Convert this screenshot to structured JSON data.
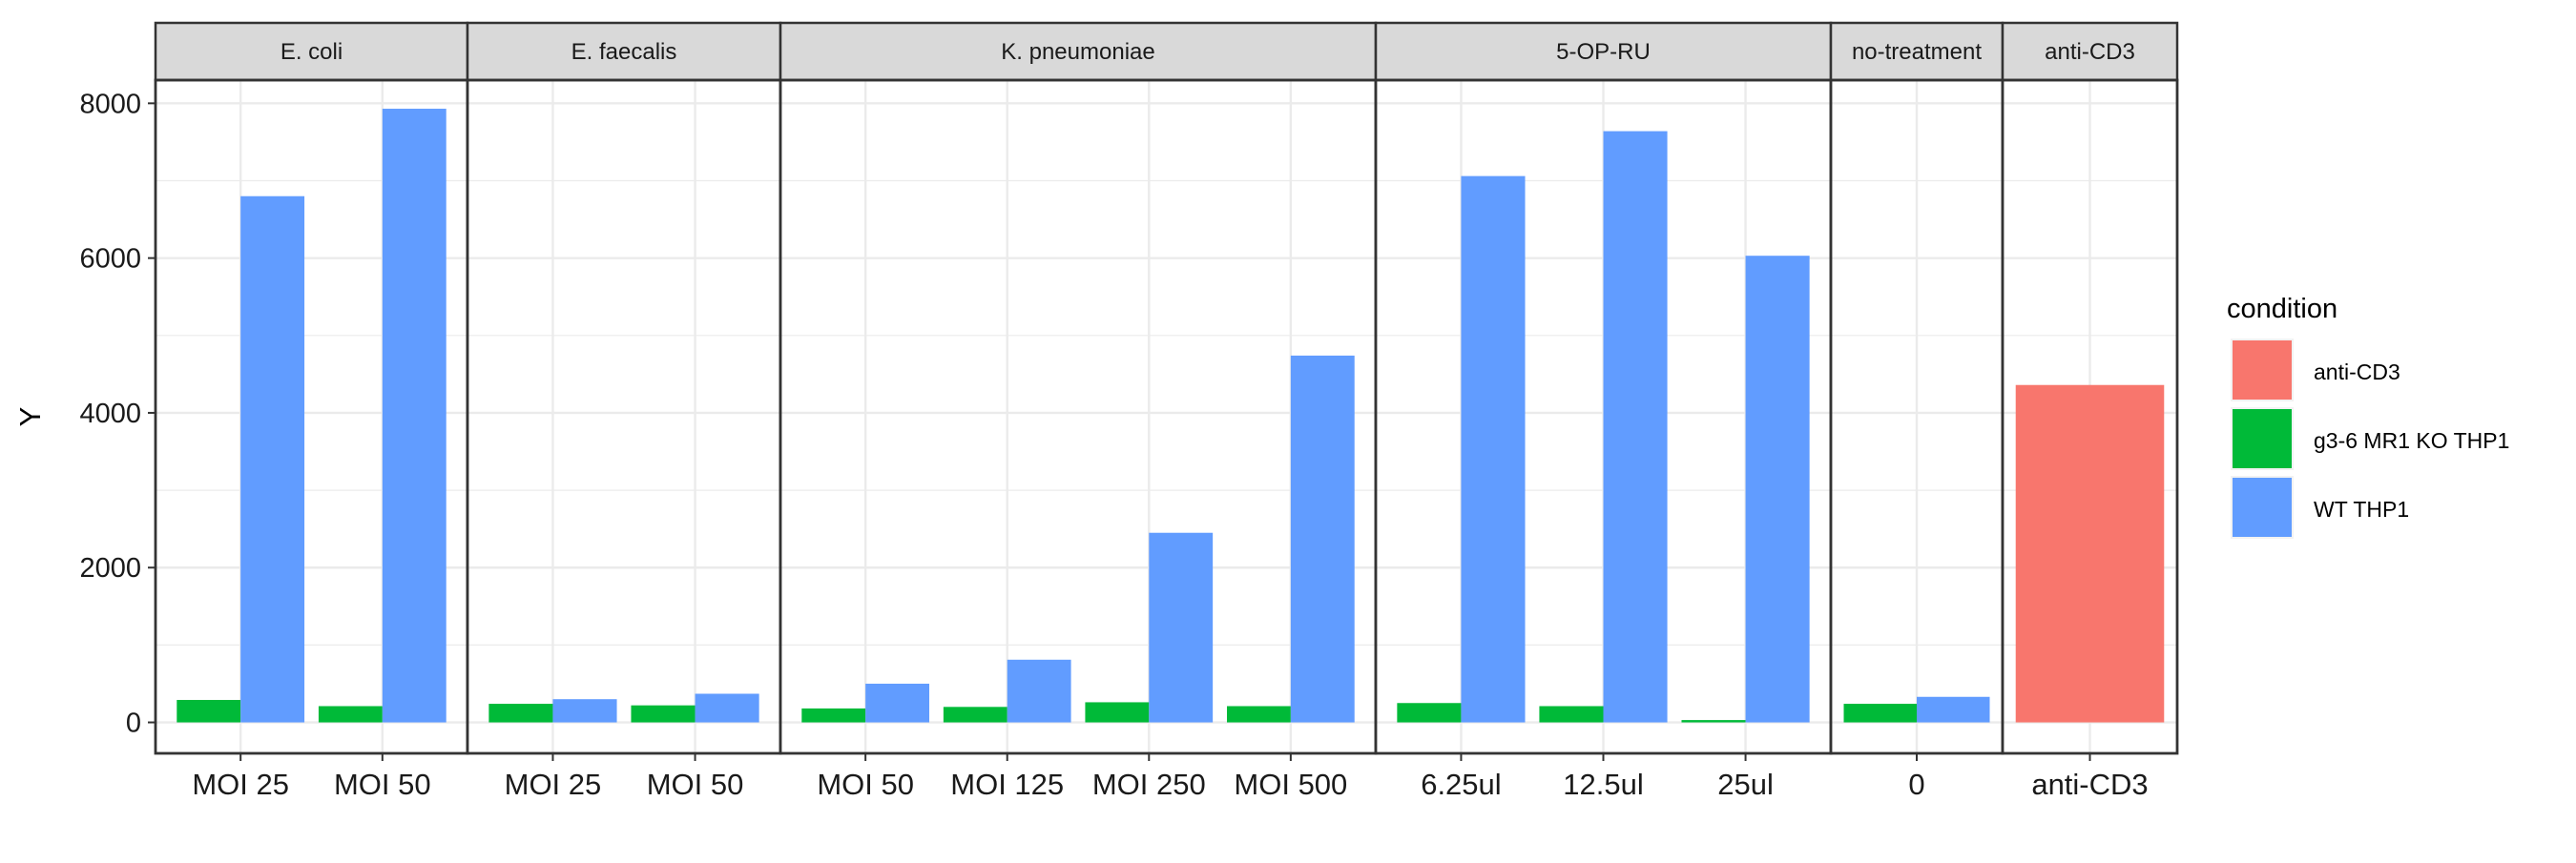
{
  "chart_data": {
    "type": "bar",
    "ylabel": "Y",
    "xlabel": "",
    "ylim": [
      -400,
      8300
    ],
    "yticks": [
      0,
      2000,
      4000,
      6000,
      8000
    ],
    "grid": true,
    "legend": {
      "title": "condition",
      "position": "right",
      "entries": [
        "anti-CD3",
        "g3-6 MR1 KO THP1",
        "WT THP1"
      ]
    },
    "colors": {
      "anti-CD3": "#F8766D",
      "g3-6 MR1 KO THP1": "#00BA38",
      "WT THP1": "#619CFF"
    },
    "facets": [
      {
        "label": "E. coli",
        "categories": [
          "MOI 25",
          "MOI 50"
        ],
        "series": [
          {
            "name": "g3-6 MR1 KO THP1",
            "values": [
              290,
              210
            ]
          },
          {
            "name": "WT THP1",
            "values": [
              6800,
              7930
            ]
          }
        ]
      },
      {
        "label": "E. faecalis",
        "categories": [
          "MOI 25",
          "MOI 50"
        ],
        "series": [
          {
            "name": "g3-6 MR1 KO THP1",
            "values": [
              240,
              220
            ]
          },
          {
            "name": "WT THP1",
            "values": [
              300,
              370
            ]
          }
        ]
      },
      {
        "label": "K. pneumoniae",
        "categories": [
          "MOI 50",
          "MOI 125",
          "MOI 250",
          "MOI 500"
        ],
        "series": [
          {
            "name": "g3-6 MR1 KO THP1",
            "values": [
              180,
              200,
              260,
              210
            ]
          },
          {
            "name": "WT THP1",
            "values": [
              500,
              810,
              2450,
              4740
            ]
          }
        ]
      },
      {
        "label": "5-OP-RU",
        "categories": [
          "6.25ul",
          "12.5ul",
          "25ul"
        ],
        "series": [
          {
            "name": "g3-6 MR1 KO THP1",
            "values": [
              250,
              210,
              30
            ]
          },
          {
            "name": "WT THP1",
            "values": [
              7060,
              7640,
              6030
            ]
          }
        ]
      },
      {
        "label": "no-treatment",
        "categories": [
          "0"
        ],
        "series": [
          {
            "name": "g3-6 MR1 KO THP1",
            "values": [
              240
            ]
          },
          {
            "name": "WT THP1",
            "values": [
              330
            ]
          }
        ]
      },
      {
        "label": "anti-CD3",
        "categories": [
          "anti-CD3"
        ],
        "series": [
          {
            "name": "anti-CD3",
            "values": [
              4360
            ]
          }
        ]
      }
    ]
  }
}
